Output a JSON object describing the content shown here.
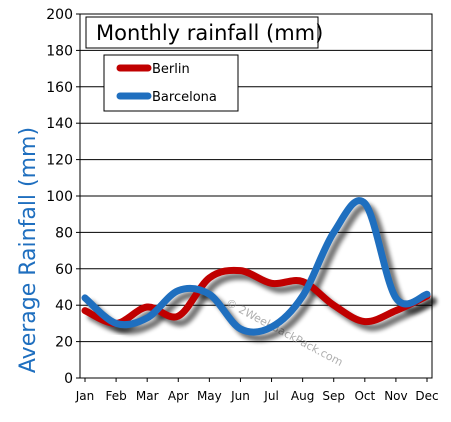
{
  "chart_data": {
    "type": "line",
    "title": "Monthly rainfall (mm)",
    "ylabel": "Average Rainfall (mm)",
    "xlabel": "",
    "categories": [
      "Jan",
      "Feb",
      "Mar",
      "Apr",
      "May",
      "Jun",
      "Jul",
      "Aug",
      "Sep",
      "Oct",
      "Nov",
      "Dec"
    ],
    "ylim": [
      0,
      200
    ],
    "yticks": [
      0,
      20,
      40,
      60,
      80,
      100,
      120,
      140,
      160,
      180,
      200
    ],
    "grid": true,
    "legend_position": "top-left",
    "series": [
      {
        "name": "Berlin",
        "color": "#c00000",
        "values": [
          37,
          30,
          39,
          34,
          55,
          59,
          52,
          53,
          40,
          31,
          37,
          45
        ]
      },
      {
        "name": "Barcelona",
        "color": "#1f6fbf",
        "values": [
          44,
          30,
          33,
          48,
          46,
          27,
          28,
          45,
          80,
          96,
          44,
          46
        ]
      }
    ],
    "watermark": "© 2WeekBackPack.com"
  }
}
